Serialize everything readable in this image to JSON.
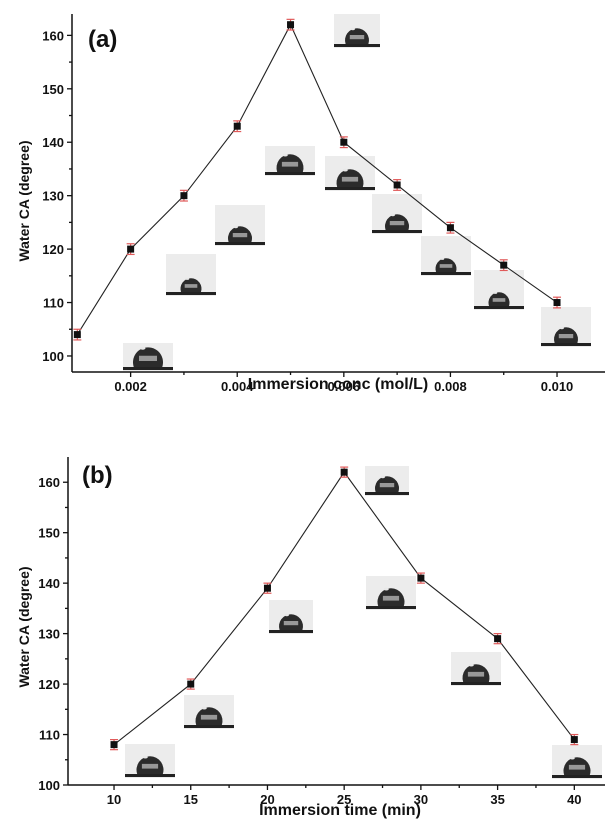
{
  "chart_data": [
    {
      "type": "line",
      "panel_label": "(a)",
      "xlabel": "Immersion conc (mol/L)",
      "ylabel": "Water CA (degree)",
      "xlim": [
        0.0009,
        0.0109
      ],
      "ylim": [
        97,
        164
      ],
      "xticks": [
        0.002,
        0.004,
        0.006,
        0.008,
        0.01
      ],
      "xtick_labels": [
        "0.002",
        "0.004",
        "0.006",
        "0.008",
        "0.010"
      ],
      "yticks": [
        100,
        110,
        120,
        130,
        140,
        150,
        160
      ],
      "ytick_labels": [
        "100",
        "110",
        "120",
        "130",
        "140",
        "150",
        "160"
      ],
      "x": [
        0.001,
        0.002,
        0.003,
        0.004,
        0.005,
        0.006,
        0.007,
        0.008,
        0.009,
        0.01
      ],
      "values": [
        104,
        120,
        130,
        143,
        162,
        140,
        132,
        124,
        117,
        110
      ],
      "error": [
        1,
        1,
        1,
        1,
        1,
        1,
        1,
        1,
        1,
        1
      ],
      "marker_color": "#111111",
      "errorbar_color": "#e05a5a"
    },
    {
      "type": "line",
      "panel_label": "(b)",
      "xlabel": "Immersion time (min)",
      "ylabel": "Water CA (degree)",
      "xlim": [
        7,
        42
      ],
      "ylim": [
        100,
        165
      ],
      "xticks": [
        10,
        15,
        20,
        25,
        30,
        35,
        40
      ],
      "xtick_labels": [
        "10",
        "15",
        "20",
        "25",
        "30",
        "35",
        "40"
      ],
      "yticks": [
        100,
        110,
        120,
        130,
        140,
        150,
        160
      ],
      "ytick_labels": [
        "100",
        "110",
        "120",
        "130",
        "140",
        "150",
        "160"
      ],
      "x": [
        10,
        15,
        20,
        25,
        30,
        35,
        40
      ],
      "values": [
        108,
        120,
        139,
        162,
        141,
        129,
        109
      ],
      "error": [
        1,
        1,
        1,
        1,
        1,
        1,
        1
      ],
      "marker_color": "#111111",
      "errorbar_color": "#e05a5a"
    }
  ]
}
